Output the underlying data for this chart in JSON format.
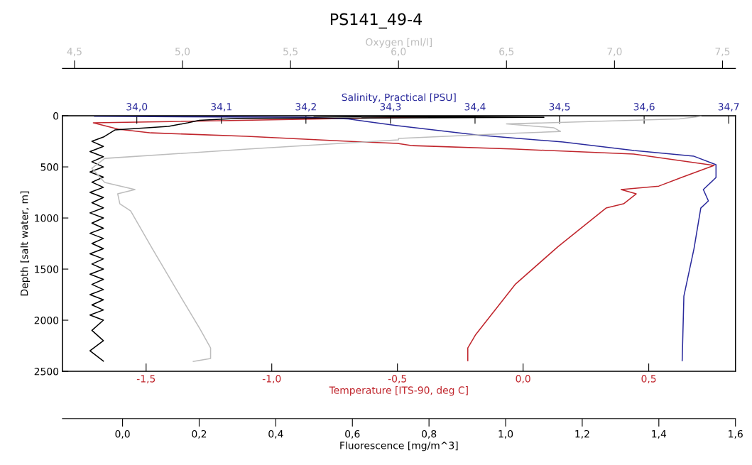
{
  "chart_data": [
    {
      "type": "line",
      "title": "PS141_49-4",
      "ylabel": "Depth [salt water, m]",
      "ylim": [
        2500,
        0
      ],
      "yticks": [
        0,
        500,
        1000,
        1500,
        2000,
        2500
      ],
      "xlabel": "Temperature [ITS-90, deg C]",
      "xlim": [
        -1.833,
        0.845
      ],
      "xticks": [
        {
          "value": -1.5,
          "label": "-1,5"
        },
        {
          "value": -1.0,
          "label": "-1,0"
        },
        {
          "value": -0.5,
          "label": "-0,5"
        },
        {
          "value": 0.0,
          "label": "0,0"
        },
        {
          "value": 0.5,
          "label": "0,5"
        }
      ],
      "x2label": "Salinity, Practical [PSU]",
      "x2lim": [
        33.912,
        34.708
      ],
      "x2ticks": [
        {
          "value": 34.0,
          "label": "34,0"
        },
        {
          "value": 34.1,
          "label": "34,1"
        },
        {
          "value": 34.2,
          "label": "34,2"
        },
        {
          "value": 34.3,
          "label": "34,3"
        },
        {
          "value": 34.4,
          "label": "34,4"
        },
        {
          "value": 34.5,
          "label": "34,5"
        },
        {
          "value": 34.6,
          "label": "34,6"
        },
        {
          "value": 34.7,
          "label": "34,7"
        }
      ],
      "series": [
        {
          "color": "#c0262d",
          "x": [
            -0.35,
            -1.0,
            -1.71,
            -1.61,
            -1.48,
            -1.1,
            -0.63,
            -0.5,
            -0.44,
            -0.03,
            0.44,
            0.76,
            0.63,
            0.54,
            0.39,
            0.45,
            0.4,
            0.33,
            0.14,
            -0.03,
            -0.19,
            -0.22,
            -0.22
          ],
          "values": [
            10,
            40,
            69,
            132,
            167,
            201,
            257,
            271,
            292,
            326,
            375,
            486,
            604,
            688,
            722,
            764,
            861,
            903,
            1278,
            1646,
            2146,
            2271,
            2396
          ]
        },
        {
          "axis": "x2",
          "color": "#2a2a9c",
          "x": [
            33.95,
            34.2,
            34.25,
            34.277,
            34.308,
            34.403,
            34.504,
            34.588,
            34.659,
            34.685,
            34.685,
            34.67,
            34.676,
            34.667,
            34.659,
            34.647,
            34.645
          ],
          "values": [
            5,
            15,
            30,
            62,
            97,
            188,
            257,
            340,
            396,
            479,
            604,
            722,
            833,
            903,
            1299,
            1764,
            2396
          ]
        }
      ]
    },
    {
      "type": "line",
      "tick_labels": "x",
      "ylim": [
        2500,
        0
      ],
      "xlabel": "Fluorescence [mg/m^3]",
      "xlim": [
        -0.157,
        1.6
      ],
      "xticks": [
        {
          "value": 0.0,
          "label": "0,0"
        },
        {
          "value": 0.2,
          "label": "0,2"
        },
        {
          "value": 0.4,
          "label": "0,4"
        },
        {
          "value": 0.6,
          "label": "0,6"
        },
        {
          "value": 0.8,
          "label": "0,8"
        },
        {
          "value": 1.0,
          "label": "1,0"
        },
        {
          "value": 1.2,
          "label": "1,2"
        },
        {
          "value": 1.4,
          "label": "1,4"
        },
        {
          "value": 1.6,
          "label": "1,6"
        }
      ],
      "x2label": "Oxygen [ml/l]",
      "x2lim": [
        4.444,
        7.56
      ],
      "x2ticks": [
        {
          "value": 4.5,
          "label": "4,5"
        },
        {
          "value": 5.0,
          "label": "5,0"
        },
        {
          "value": 5.5,
          "label": "5,5"
        },
        {
          "value": 6.0,
          "label": "6,0"
        },
        {
          "value": 6.5,
          "label": "6,5"
        },
        {
          "value": 7.0,
          "label": "7,0"
        },
        {
          "value": 7.5,
          "label": "7,5"
        }
      ],
      "series": [
        {
          "axis": "x2",
          "color": "#bdbdbd",
          "x": [
            7.4,
            7.3,
            6.5,
            6.72,
            6.75,
            6.55,
            6.0,
            6.0,
            5.73,
            5.3,
            4.64,
            4.58,
            4.64,
            4.78,
            4.7,
            4.71,
            4.76,
            4.86,
            4.97,
            5.08,
            5.13,
            5.13,
            5.05
          ],
          "values": [
            5,
            30,
            80,
            118,
            153,
            170,
            222,
            236,
            271,
            326,
            417,
            514,
            653,
            722,
            764,
            861,
            931,
            1299,
            1694,
            2083,
            2271,
            2375,
            2403
          ]
        },
        {
          "color": "#000000",
          "x": [
            0.5,
            1.1,
            0.3,
            0.2,
            0.17,
            0.12,
            -0.02,
            -0.05,
            -0.08,
            -0.05,
            -0.085,
            -0.05,
            -0.08,
            -0.05,
            -0.085,
            -0.05,
            -0.08,
            -0.05,
            -0.085,
            -0.05,
            -0.08,
            -0.05,
            -0.085,
            -0.05,
            -0.08,
            -0.05,
            -0.085,
            -0.05,
            -0.08,
            -0.05,
            -0.085,
            -0.05,
            -0.08,
            -0.05,
            -0.085,
            -0.05,
            -0.08,
            -0.05,
            -0.085,
            -0.05,
            -0.08,
            -0.05,
            -0.085,
            -0.05,
            -0.08,
            -0.05,
            -0.085,
            -0.05
          ],
          "values": [
            5,
            15,
            25,
            45,
            69,
            104,
            139,
            208,
            250,
            300,
            350,
            400,
            450,
            500,
            550,
            600,
            650,
            700,
            750,
            800,
            850,
            900,
            950,
            1000,
            1050,
            1100,
            1150,
            1200,
            1250,
            1300,
            1350,
            1400,
            1450,
            1500,
            1550,
            1600,
            1650,
            1700,
            1750,
            1800,
            1850,
            1900,
            1950,
            2000,
            2100,
            2200,
            2300,
            2400
          ]
        }
      ]
    }
  ]
}
